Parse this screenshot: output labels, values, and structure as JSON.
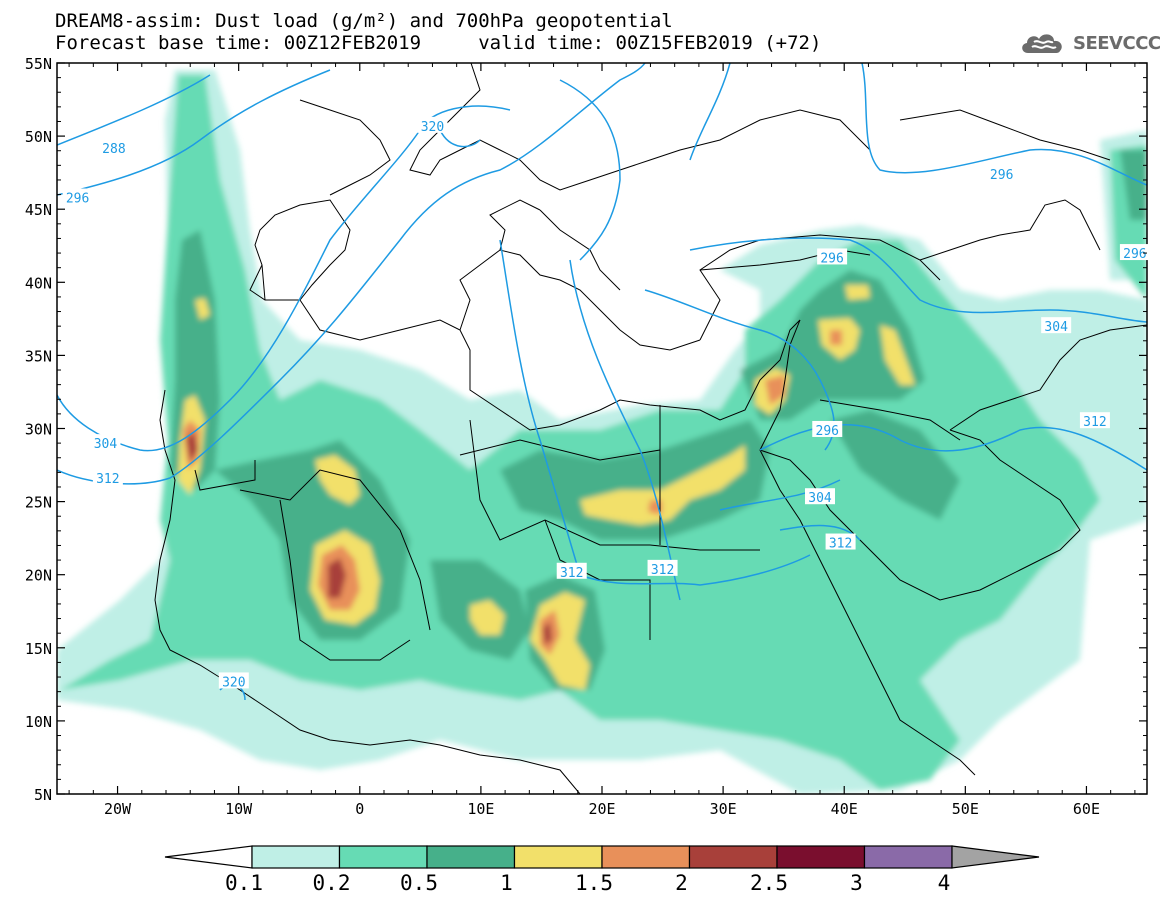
{
  "header": {
    "line1": "DREAM8-assim: Dust load (g/m²) and 700hPa geopotential",
    "line2": "Forecast base time: 00Z12FEB2019     valid time: 00Z15FEB2019 (+72)",
    "logo_text": "SEEVCCC"
  },
  "axes": {
    "lat_labels": [
      "55N",
      "50N",
      "45N",
      "40N",
      "35N",
      "30N",
      "25N",
      "20N",
      "15N",
      "10N",
      "5N"
    ],
    "lon_labels": [
      "20W",
      "10W",
      "0",
      "10E",
      "20E",
      "30E",
      "40E",
      "50E",
      "60E"
    ],
    "lat_range": [
      5,
      55
    ],
    "lon_range": [
      -25,
      65
    ]
  },
  "contour_labels": [
    {
      "text": "288",
      "lon": -20.3,
      "lat": 49.2
    },
    {
      "text": "296",
      "lon": -23.3,
      "lat": 45.8
    },
    {
      "text": "320",
      "lon": 6.0,
      "lat": 50.7
    },
    {
      "text": "296",
      "lon": 39.0,
      "lat": 41.7
    },
    {
      "text": "296",
      "lon": 53.0,
      "lat": 47.4
    },
    {
      "text": "296",
      "lon": 64.0,
      "lat": 42.0
    },
    {
      "text": "304",
      "lon": 57.5,
      "lat": 37.0
    },
    {
      "text": "304",
      "lon": -21.0,
      "lat": 29.0
    },
    {
      "text": "312",
      "lon": -20.8,
      "lat": 26.6
    },
    {
      "text": "312",
      "lon": 60.7,
      "lat": 30.5
    },
    {
      "text": "296",
      "lon": 38.6,
      "lat": 29.9
    },
    {
      "text": "304",
      "lon": 38.0,
      "lat": 25.3
    },
    {
      "text": "312",
      "lon": 39.7,
      "lat": 22.2
    },
    {
      "text": "312",
      "lon": 17.5,
      "lat": 20.2
    },
    {
      "text": "312",
      "lon": 25.0,
      "lat": 20.4
    },
    {
      "text": "320",
      "lon": -10.4,
      "lat": 12.7
    }
  ],
  "colorbar": {
    "labels": [
      "0.1",
      "0.2",
      "0.5",
      "1",
      "1.5",
      "2",
      "2.5",
      "3",
      "4"
    ],
    "colors": [
      "#bfefe6",
      "#66dbb4",
      "#46b08a",
      "#f2e06a",
      "#e8905a",
      "#a8403a",
      "#7a0e2e",
      "#8a6aa8",
      "#a3a3a3"
    ],
    "min_arrow_color": "#ffffff"
  },
  "dust_levels": [
    {
      "name": "0.1",
      "color": "#bfefe6"
    },
    {
      "name": "0.2",
      "color": "#66dbb4"
    },
    {
      "name": "0.5",
      "color": "#46b08a"
    },
    {
      "name": "1",
      "color": "#f2e06a"
    },
    {
      "name": "1.5",
      "color": "#e8905a"
    },
    {
      "name": "2",
      "color": "#a8403a"
    }
  ],
  "colors": {
    "contour": "#1e9be3",
    "coast": "#000000"
  }
}
